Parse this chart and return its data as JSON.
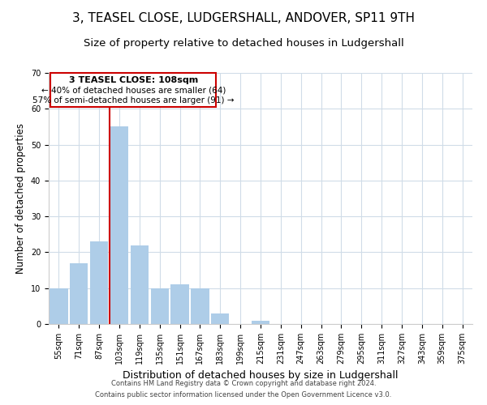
{
  "title": "3, TEASEL CLOSE, LUDGERSHALL, ANDOVER, SP11 9TH",
  "subtitle": "Size of property relative to detached houses in Ludgershall",
  "xlabel": "Distribution of detached houses by size in Ludgershall",
  "ylabel": "Number of detached properties",
  "bar_labels": [
    "55sqm",
    "71sqm",
    "87sqm",
    "103sqm",
    "119sqm",
    "135sqm",
    "151sqm",
    "167sqm",
    "183sqm",
    "199sqm",
    "215sqm",
    "231sqm",
    "247sqm",
    "263sqm",
    "279sqm",
    "295sqm",
    "311sqm",
    "327sqm",
    "343sqm",
    "359sqm",
    "375sqm"
  ],
  "bar_values": [
    10,
    17,
    23,
    55,
    22,
    10,
    11,
    10,
    3,
    0,
    1,
    0,
    0,
    0,
    0,
    0,
    0,
    0,
    0,
    0,
    0
  ],
  "bar_color": "#aecde8",
  "vline_x": 2.5,
  "vline_color": "#cc0000",
  "ylim": [
    0,
    70
  ],
  "yticks": [
    0,
    10,
    20,
    30,
    40,
    50,
    60,
    70
  ],
  "annotation_title": "3 TEASEL CLOSE: 108sqm",
  "annotation_line1": "← 40% of detached houses are smaller (64)",
  "annotation_line2": "57% of semi-detached houses are larger (91) →",
  "annotation_box_color": "#ffffff",
  "annotation_box_edge": "#cc0000",
  "footer_line1": "Contains HM Land Registry data © Crown copyright and database right 2024.",
  "footer_line2": "Contains public sector information licensed under the Open Government Licence v3.0.",
  "background_color": "#ffffff",
  "grid_color": "#d0dce8",
  "title_fontsize": 11,
  "subtitle_fontsize": 9.5,
  "xlabel_fontsize": 9,
  "ylabel_fontsize": 8.5,
  "tick_fontsize": 7,
  "footer_fontsize": 6,
  "ann_title_fontsize": 8,
  "ann_text_fontsize": 7.5
}
